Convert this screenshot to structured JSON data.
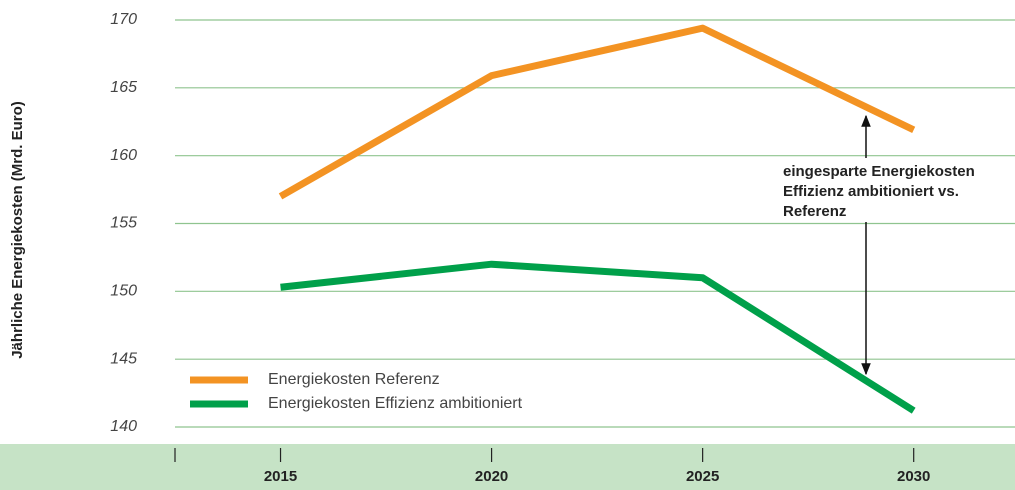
{
  "chart_data": {
    "type": "line",
    "y_label": "Jährliche Energiekosten (Mrd. Euro)",
    "x": [
      2015,
      2020,
      2025,
      2030
    ],
    "xlim": [
      2012.5,
      2032.4
    ],
    "xticks": [
      2015,
      2020,
      2025,
      2030
    ],
    "ylim": [
      140,
      170
    ],
    "yticks": [
      140,
      145,
      150,
      155,
      160,
      165,
      170
    ],
    "grid": true,
    "legend": "lower left",
    "series": [
      {
        "name": "Energiekosten Referenz",
        "color": "#f39323",
        "values": [
          157.0,
          165.9,
          169.4,
          161.9
        ]
      },
      {
        "name": "Energiekosten Effizienz ambitioniert",
        "color": "#00a04a",
        "values": [
          150.3,
          152.0,
          151.0,
          141.2
        ]
      }
    ],
    "annotation": {
      "lines": [
        "eingesparte Energiekosten",
        "Effizienz ambitioniert vs.",
        "Referenz"
      ]
    }
  }
}
